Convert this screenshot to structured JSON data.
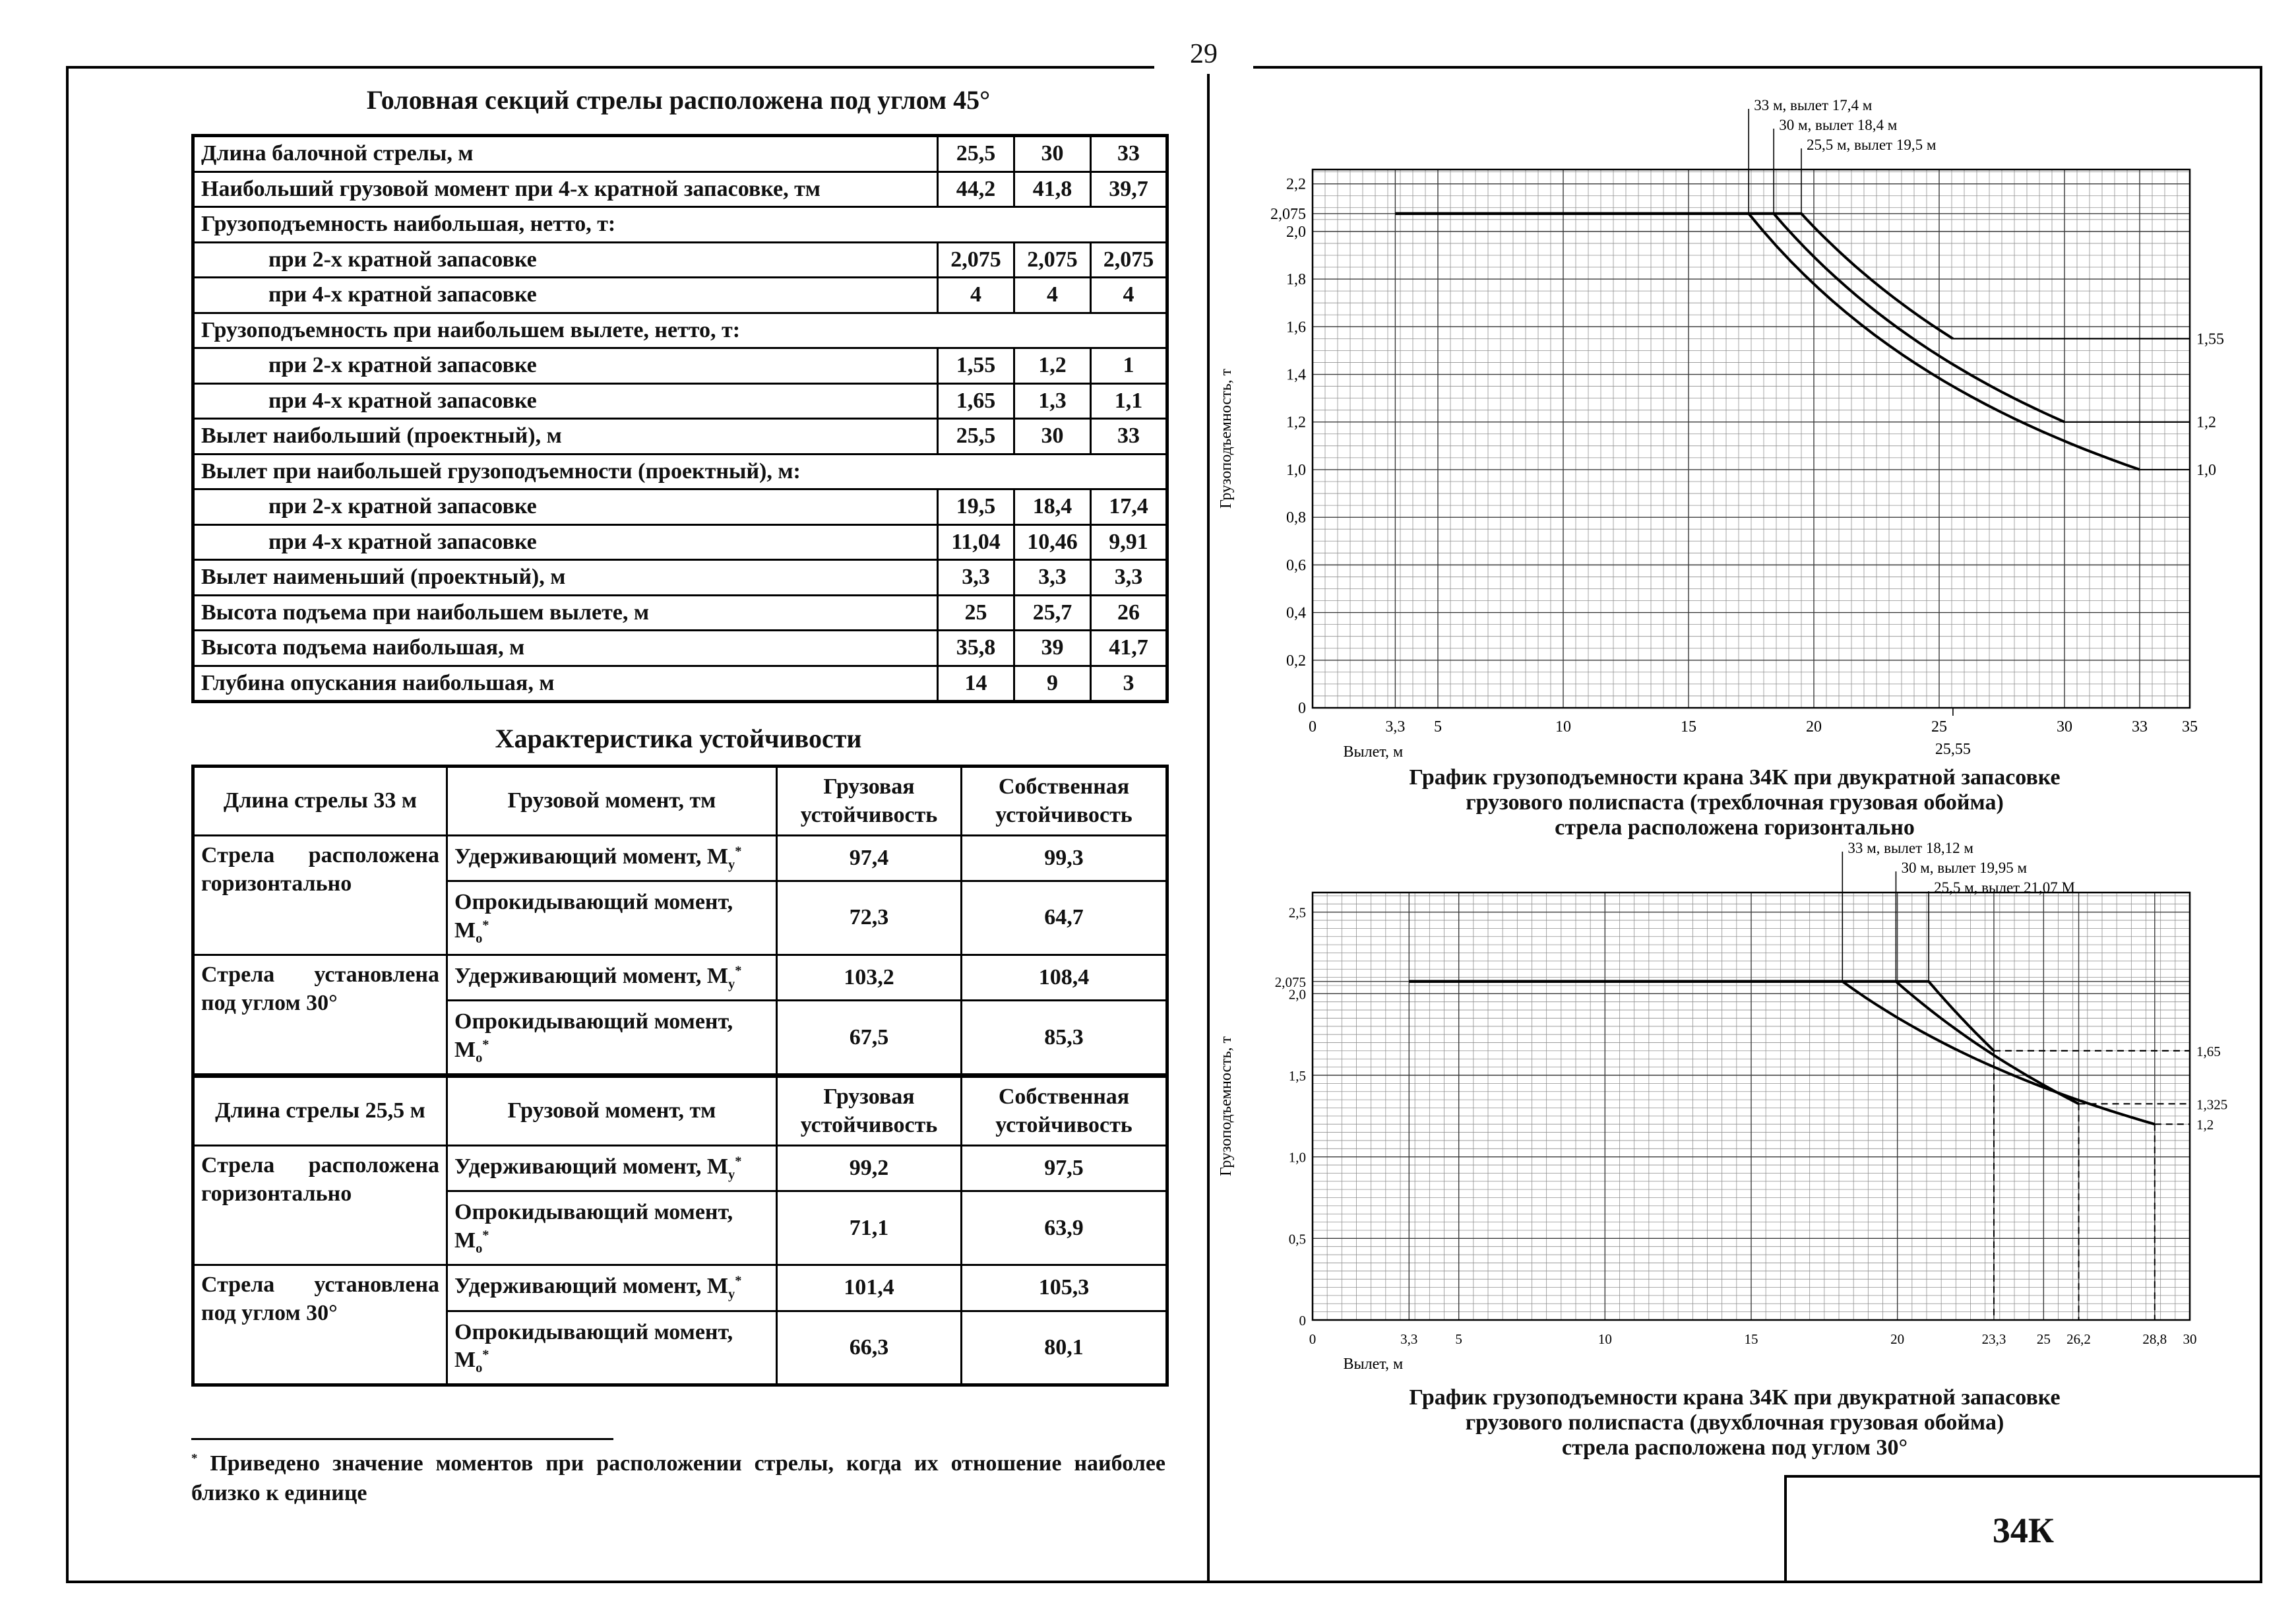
{
  "page_number": "29",
  "corner_label": "34К",
  "main_table": {
    "title": "Головная секций стрелы расположена под углом 45°",
    "rows": [
      {
        "type": "data",
        "label": "Длина балочной стрелы, м",
        "values": [
          "25,5",
          "30",
          "33"
        ]
      },
      {
        "type": "data",
        "label": "Наибольший грузовой момент при 4-х кратной запасовке, тм",
        "values": [
          "44,2",
          "41,8",
          "39,7"
        ]
      },
      {
        "type": "group",
        "label": "Грузоподъемность наибольшая, нетто, т:"
      },
      {
        "type": "sub",
        "label": "при 2-х кратной запасовке",
        "values": [
          "2,075",
          "2,075",
          "2,075"
        ]
      },
      {
        "type": "sub",
        "label": "при 4-х кратной запасовке",
        "values": [
          "4",
          "4",
          "4"
        ]
      },
      {
        "type": "group",
        "label": "Грузоподъемность при наибольшем вылете, нетто, т:"
      },
      {
        "type": "sub",
        "label": "при 2-х кратной запасовке",
        "values": [
          "1,55",
          "1,2",
          "1"
        ]
      },
      {
        "type": "sub",
        "label": "при 4-х кратной запасовке",
        "values": [
          "1,65",
          "1,3",
          "1,1"
        ]
      },
      {
        "type": "data",
        "label": "Вылет наибольший (проектный), м",
        "values": [
          "25,5",
          "30",
          "33"
        ]
      },
      {
        "type": "group",
        "label": "Вылет при наибольшей грузоподъемности (проектный), м:"
      },
      {
        "type": "sub",
        "label": "при 2-х кратной запасовке",
        "values": [
          "19,5",
          "18,4",
          "17,4"
        ]
      },
      {
        "type": "sub",
        "label": "при 4-х кратной запасовке",
        "values": [
          "11,04",
          "10,46",
          "9,91"
        ]
      },
      {
        "type": "data",
        "label": "Вылет наименьший (проектный), м",
        "values": [
          "3,3",
          "3,3",
          "3,3"
        ]
      },
      {
        "type": "data",
        "label": "Высота подъема при наибольшем вылете, м",
        "values": [
          "25",
          "25,7",
          "26"
        ]
      },
      {
        "type": "data",
        "label": "Высота подъема наибольшая, м",
        "values": [
          "35,8",
          "39",
          "41,7"
        ]
      },
      {
        "type": "data",
        "label": "Глубина опускания наибольшая, м",
        "values": [
          "14",
          "9",
          "3"
        ]
      }
    ]
  },
  "stability": {
    "title": "Характеристика устойчивости",
    "sections": [
      {
        "boom": "Длина стрелы 33 м",
        "header": [
          "Грузовой момент, тм",
          "Грузовая устойчивость",
          "Собственная устойчивость"
        ],
        "groups": [
          {
            "condition": "Стрела расположена горизонтально",
            "rows": [
              {
                "m": "Удерживающий момент, М",
                "m_sub": "у",
                "m_sup": "*",
                "cargo": "97,4",
                "own": "99,3"
              },
              {
                "m": "Опрокидывающий момент, М",
                "m_sub": "о",
                "m_sup": "*",
                "cargo": "72,3",
                "own": "64,7"
              }
            ]
          },
          {
            "condition": "Стрела установлена под углом 30°",
            "rows": [
              {
                "m": "Удерживающий момент, М",
                "m_sub": "у",
                "m_sup": "*",
                "cargo": "103,2",
                "own": "108,4"
              },
              {
                "m": "Опрокидывающий момент, М",
                "m_sub": "о",
                "m_sup": "*",
                "cargo": "67,5",
                "own": "85,3"
              }
            ]
          }
        ]
      },
      {
        "boom": "Длина стрелы 25,5 м",
        "header": [
          "Грузовой момент, тм",
          "Грузовая устойчивость",
          "Собственная устойчивость"
        ],
        "groups": [
          {
            "condition": "Стрела расположена горизонтально",
            "rows": [
              {
                "m": "Удерживающий момент, М",
                "m_sub": "у",
                "m_sup": "*",
                "cargo": "99,2",
                "own": "97,5"
              },
              {
                "m": "Опрокидывающий момент, М",
                "m_sub": "о",
                "m_sup": "*",
                "cargo": "71,1",
                "own": "63,9"
              }
            ]
          },
          {
            "condition": "Стрела установлена под углом 30°",
            "rows": [
              {
                "m": "Удерживающий момент, М",
                "m_sub": "у",
                "m_sup": "*",
                "cargo": "101,4",
                "own": "105,3"
              },
              {
                "m": "Опрокидывающий момент, М",
                "m_sub": "о",
                "m_sup": "*",
                "cargo": "66,3",
                "own": "80,1"
              }
            ]
          }
        ]
      }
    ]
  },
  "footnote": {
    "marker": "*",
    "text": " Приведено значение моментов при расположении стрелы, когда их отношение наиболее близко к единице"
  },
  "chart_data": [
    {
      "type": "line",
      "title": "График грузоподъемности крана 34К при двукратной запасовке грузового полиспаста (трехблочная грузовая обойма), стрела расположена горизонтально",
      "caption": [
        "График грузоподъемности крана 34К при двукратной запасовке",
        "грузового полиспаста (трехблочная грузовая обойма)",
        "стрела расположена горизонтально"
      ],
      "ylabel": "Грузоподъемность, т",
      "xlabel": "Вылет, м",
      "x_range": [
        0,
        35
      ],
      "y_range": [
        0,
        2.2
      ],
      "x_min": 3.3,
      "plateau": 2.075,
      "grid": true,
      "dashed_ends": false,
      "x_ticks": [
        {
          "v": 0,
          "l": "0"
        },
        {
          "v": 3.3,
          "l": "3,3"
        },
        {
          "v": 5,
          "l": "5"
        },
        {
          "v": 10,
          "l": "10"
        },
        {
          "v": 15,
          "l": "15"
        },
        {
          "v": 20,
          "l": "20"
        },
        {
          "v": 25,
          "l": "25"
        },
        {
          "v": 30,
          "l": "30"
        },
        {
          "v": 33,
          "l": "33"
        },
        {
          "v": 35,
          "l": "35"
        }
      ],
      "x_sub_ticks": [
        {
          "v": 25.55,
          "l": "25,55"
        }
      ],
      "y_ticks": [
        {
          "v": 0,
          "l": "0"
        },
        {
          "v": 0.2,
          "l": "0,2"
        },
        {
          "v": 0.4,
          "l": "0,4"
        },
        {
          "v": 0.6,
          "l": "0,6"
        },
        {
          "v": 0.8,
          "l": "0,8"
        },
        {
          "v": 1.0,
          "l": "1,0"
        },
        {
          "v": 1.2,
          "l": "1,2"
        },
        {
          "v": 1.4,
          "l": "1,4"
        },
        {
          "v": 1.6,
          "l": "1,6"
        },
        {
          "v": 1.8,
          "l": "1,8"
        },
        {
          "v": 2.0,
          "l": "2,0"
        },
        {
          "v": 2.075,
          "l": "2,075"
        },
        {
          "v": 2.2,
          "l": "2,2"
        }
      ],
      "series": [
        {
          "name": "стрела 33 м",
          "break_x": 17.4,
          "end_x": 33,
          "end_y": 1.0,
          "right_label": "1,0",
          "points": [
            [
              3.3,
              2.075
            ],
            [
              17.4,
              2.075
            ],
            [
              33,
              1.0
            ]
          ]
        },
        {
          "name": "стрела 30 м",
          "break_x": 18.4,
          "end_x": 30,
          "end_y": 1.2,
          "right_label": "1,2",
          "points": [
            [
              3.3,
              2.075
            ],
            [
              18.4,
              2.075
            ],
            [
              30,
              1.2
            ]
          ]
        },
        {
          "name": "стрела 25,5 м",
          "break_x": 19.5,
          "end_x": 25.55,
          "end_y": 1.55,
          "right_label": "1,55",
          "points": [
            [
              3.3,
              2.075
            ],
            [
              19.5,
              2.075
            ],
            [
              25.55,
              1.55
            ]
          ]
        }
      ],
      "annotations": [
        "33 м, вылет 17,4 м",
        "30 м, вылет 18,4 м",
        "25,5 м, вылет 19,5 м"
      ]
    },
    {
      "type": "line",
      "title": "График грузоподъемности крана 34К при двукратной запасовке грузового полиспаста (двухблочная грузовая обойма), стрела расположена под углом 30°",
      "caption": [
        "График грузоподъемности крана 34К при двукратной запасовке",
        "грузового полиспаста (двухблочная грузовая обойма)",
        "стрела расположена под углом 30°"
      ],
      "ylabel": "Грузоподъемность, т",
      "xlabel": "Вылет, м",
      "x_range": [
        0,
        30
      ],
      "y_range": [
        0,
        2.5
      ],
      "x_min": 3.3,
      "plateau": 2.075,
      "grid": true,
      "dashed_ends": true,
      "x_ticks": [
        {
          "v": 0,
          "l": "0"
        },
        {
          "v": 3.3,
          "l": "3,3"
        },
        {
          "v": 5,
          "l": "5"
        },
        {
          "v": 10,
          "l": "10"
        },
        {
          "v": 15,
          "l": "15"
        },
        {
          "v": 20,
          "l": "20"
        },
        {
          "v": 23.3,
          "l": "23,3"
        },
        {
          "v": 25,
          "l": "25"
        },
        {
          "v": 26.2,
          "l": "26,2"
        },
        {
          "v": 28.8,
          "l": "28,8"
        },
        {
          "v": 30,
          "l": "30"
        }
      ],
      "x_sub_ticks": [],
      "y_ticks": [
        {
          "v": 0,
          "l": "0"
        },
        {
          "v": 0.5,
          "l": "0,5"
        },
        {
          "v": 1.0,
          "l": "1,0"
        },
        {
          "v": 1.5,
          "l": "1,5"
        },
        {
          "v": 2.0,
          "l": "2,0"
        },
        {
          "v": 2.075,
          "l": "2,075"
        },
        {
          "v": 2.5,
          "l": "2,5"
        }
      ],
      "series": [
        {
          "name": "стрела 33 м",
          "break_x": 18.12,
          "end_x": 28.8,
          "end_y": 1.2,
          "right_label": "1,2",
          "points": [
            [
              3.3,
              2.075
            ],
            [
              18.12,
              2.075
            ],
            [
              28.8,
              1.2
            ]
          ]
        },
        {
          "name": "стрела 30 м",
          "break_x": 19.95,
          "end_x": 26.2,
          "end_y": 1.325,
          "right_label": "1,325",
          "points": [
            [
              3.3,
              2.075
            ],
            [
              19.95,
              2.075
            ],
            [
              26.2,
              1.325
            ]
          ]
        },
        {
          "name": "стрела 25,5 м",
          "break_x": 21.07,
          "end_x": 23.3,
          "end_y": 1.65,
          "right_label": "1,65",
          "points": [
            [
              3.3,
              2.075
            ],
            [
              21.07,
              2.075
            ],
            [
              23.3,
              1.65
            ]
          ]
        }
      ],
      "annotations": [
        "33 м, вылет 18,12 м",
        "30 м, вылет 19,95 м",
        "25,5 м, вылет 21,07 М"
      ]
    }
  ]
}
